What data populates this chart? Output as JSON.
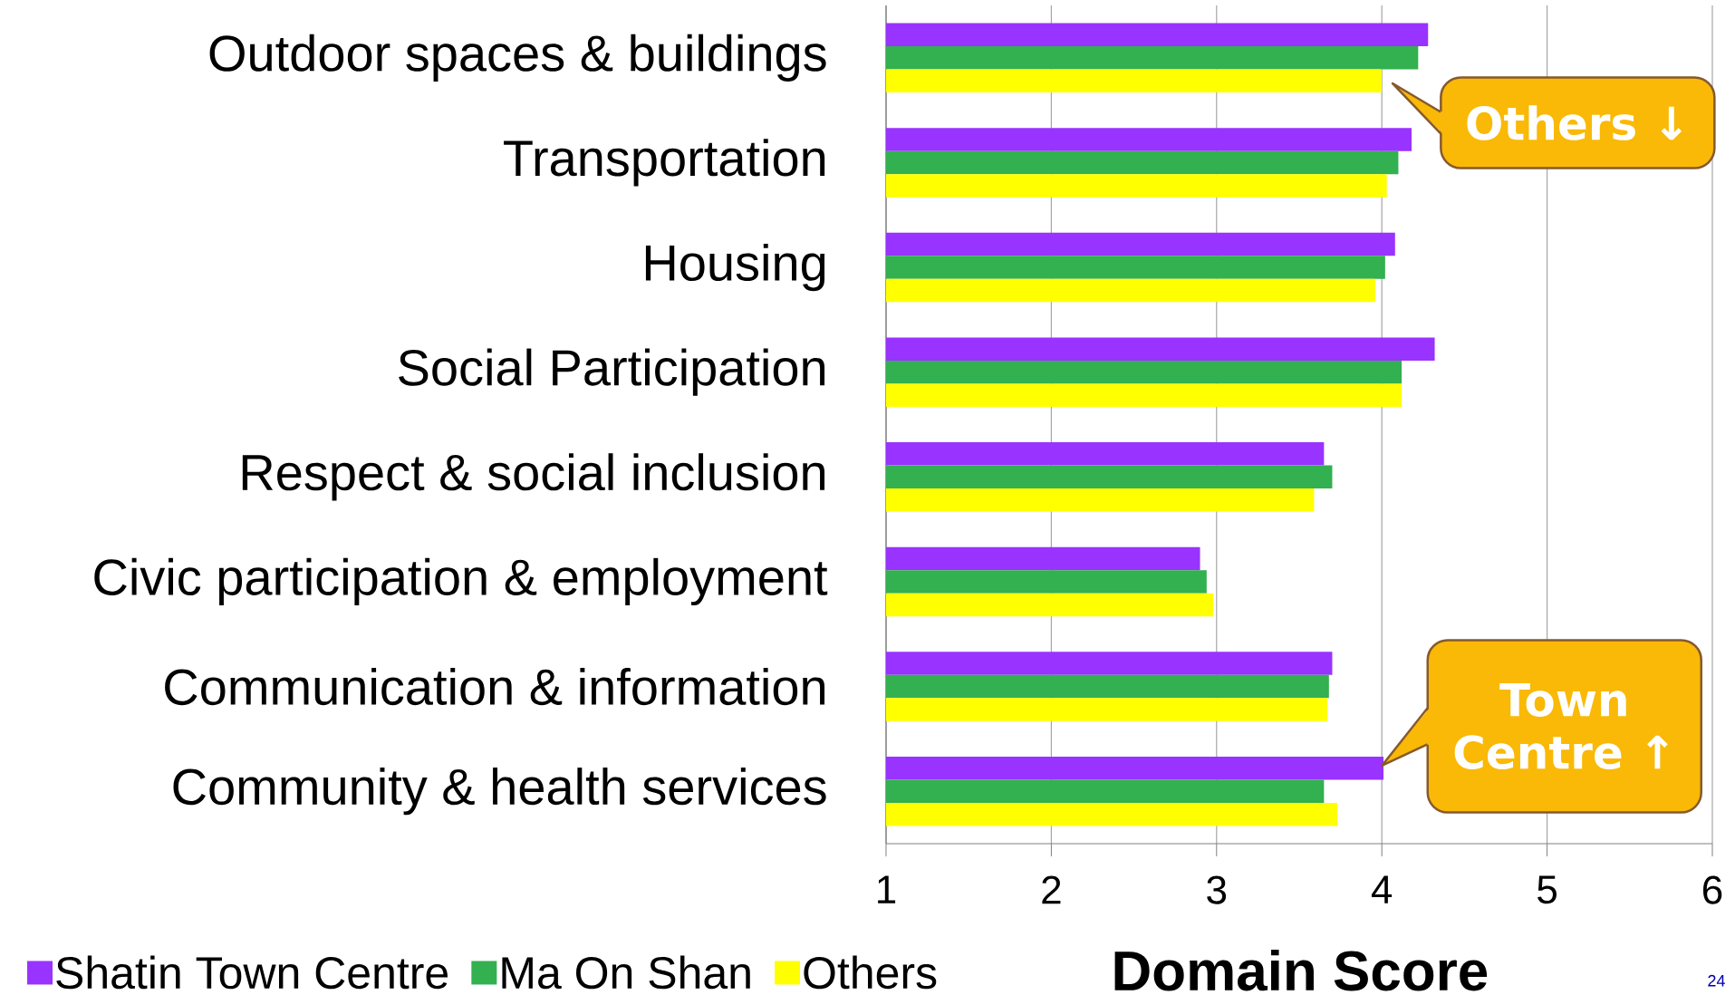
{
  "chart_data": {
    "type": "bar",
    "orientation": "horizontal",
    "categories": [
      "Outdoor spaces & buildings",
      "Transportation",
      "Housing",
      "Social Participation",
      "Respect & social inclusion",
      "Civic participation & employment",
      "Communication & information",
      "Community & health services"
    ],
    "series": [
      {
        "name": "Shatin Town Centre",
        "color": "#9933ff",
        "values": [
          4.28,
          4.18,
          4.08,
          4.32,
          3.65,
          2.9,
          3.7,
          4.01
        ]
      },
      {
        "name": "Ma On Shan",
        "color": "#33b04f",
        "values": [
          4.22,
          4.1,
          4.02,
          4.12,
          3.7,
          2.94,
          3.68,
          3.65
        ]
      },
      {
        "name": "Others",
        "color": "#ffff00",
        "values": [
          4.0,
          4.03,
          3.96,
          4.12,
          3.59,
          2.98,
          3.67,
          3.73
        ]
      }
    ],
    "xlim": [
      1,
      6
    ],
    "xticks": [
      1,
      2,
      3,
      4,
      5,
      6
    ],
    "grid": "x",
    "legend": "bottom",
    "xlabel": "Domain Score",
    "annotations": [
      "Others ↓",
      "Town Centre ↑",
      "24"
    ]
  }
}
